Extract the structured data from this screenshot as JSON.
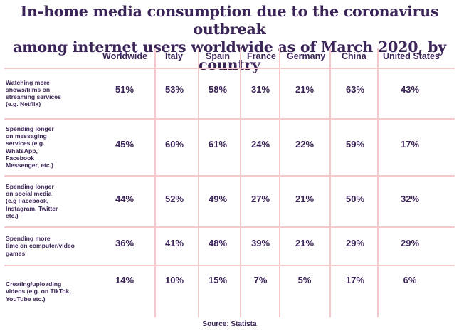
{
  "chart_data": {
    "type": "table",
    "title_line1": "In-home media consumption due to the coronavirus outbreak",
    "title_line2": "among internet users worldwide as of March 2020, by country",
    "columns": [
      "Worldwide",
      "Italy",
      "Spain",
      "France",
      "Germany",
      "China",
      "United States"
    ],
    "rows": [
      {
        "label": "Watching more shows/films on streaming services (e.g. Netflix)",
        "label_lines": [
          "Watching more",
          "shows/films on",
          "streaming services",
          "(e.g. Netflix)"
        ],
        "values": [
          "51%",
          "53%",
          "58%",
          "31%",
          "21%",
          "63%",
          "43%"
        ]
      },
      {
        "label": "Spending longer on messaging services (e.g. WhatsApp, Facebook Messenger, etc.)",
        "label_lines": [
          "Spending longer",
          "on messaging",
          "services (e.g.",
          "WhatsApp,",
          "Facebook",
          "Messenger, etc.)"
        ],
        "values": [
          "45%",
          "60%",
          "61%",
          "24%",
          "22%",
          "59%",
          "17%"
        ]
      },
      {
        "label": "Spending longer on social media (e.g Facebook, Instagram, Twitter etc.)",
        "label_lines": [
          "Spending longer",
          "on social media",
          "(e.g Facebook,",
          "Instagram, Twitter",
          "etc.)"
        ],
        "values": [
          "44%",
          "52%",
          "49%",
          "27%",
          "21%",
          "50%",
          "32%"
        ]
      },
      {
        "label": "Spending more time on computer/video games",
        "label_lines": [
          "Spending more",
          "time on computer/video",
          "games"
        ],
        "values": [
          "36%",
          "41%",
          "48%",
          "39%",
          "21%",
          "29%",
          "29%"
        ]
      },
      {
        "label": "Creating/uploading videos (e.g. on TikTok, YouTube etc.)",
        "label_lines": [
          "Creating/uploading",
          "videos (e.g. on TikTok,",
          "YouTube etc.)"
        ],
        "values": [
          "14%",
          "10%",
          "15%",
          "7%",
          "5%",
          "17%",
          "6%"
        ]
      }
    ],
    "source": "Source: Statista"
  },
  "colors": {
    "text": "#3b2457",
    "grid": "#f3c9cc",
    "background": "#ffffff"
  }
}
